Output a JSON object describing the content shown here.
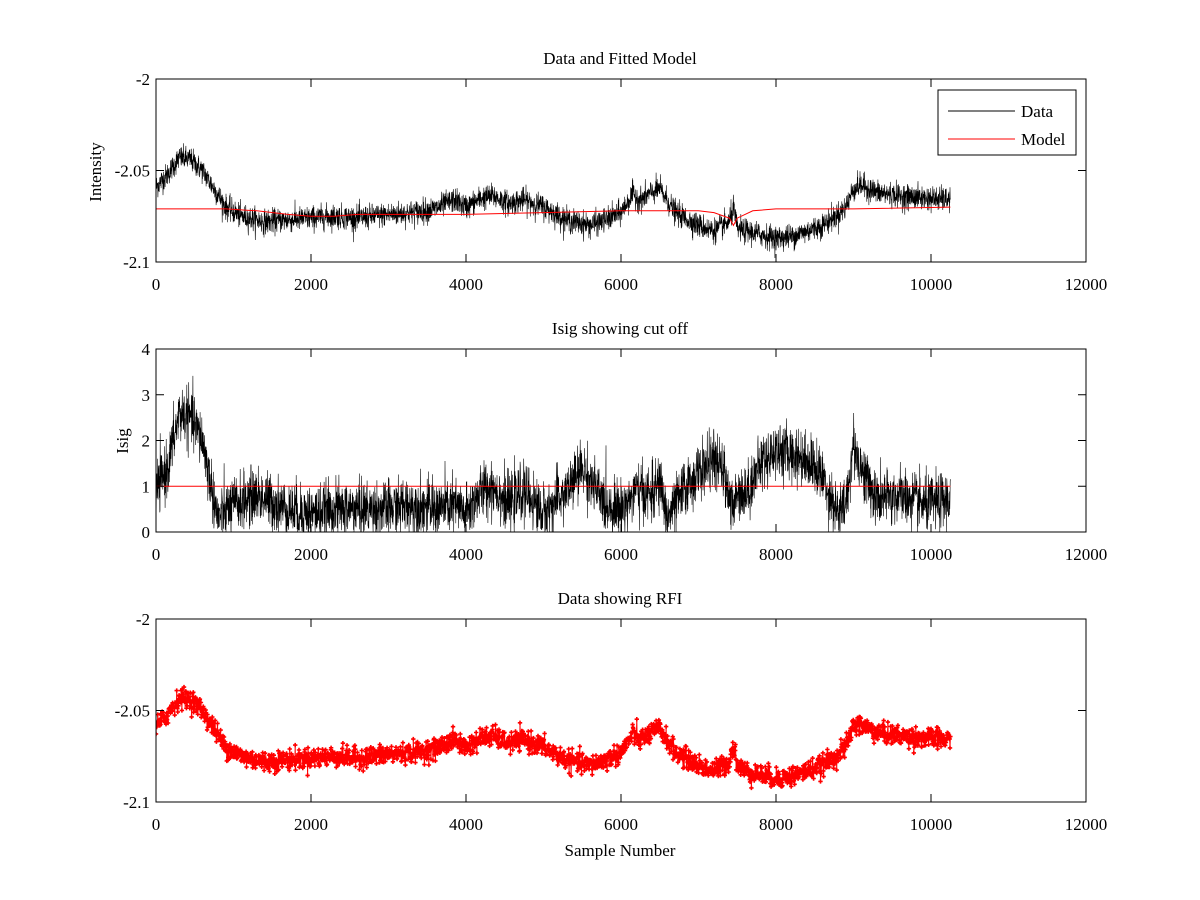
{
  "figure": {
    "background": "#ffffff",
    "axes_color": "#000000"
  },
  "chart_data": [
    {
      "type": "line",
      "title": "Data and Fitted Model",
      "xlabel": "",
      "ylabel": "Intensity",
      "xlim": [
        0,
        12000
      ],
      "ylim": [
        -2.1,
        -2.0
      ],
      "xticks": [
        0,
        2000,
        4000,
        6000,
        8000,
        10000,
        12000
      ],
      "yticks": [
        -2.1,
        -2.05,
        -2.0
      ],
      "xtick_labels": [
        "0",
        "2000",
        "4000",
        "6000",
        "8000",
        "10000",
        "12000"
      ],
      "ytick_labels": [
        "-2.1",
        "-2.05",
        "-2"
      ],
      "grid": false,
      "legend": {
        "placement": "top-right",
        "entries": [
          "Data",
          "Model"
        ]
      },
      "series": [
        {
          "name": "Data",
          "color": "#000000",
          "style": "line",
          "noise": 0.006,
          "x": [
            0,
            150,
            300,
            450,
            600,
            750,
            900,
            1100,
            1400,
            1700,
            2000,
            2300,
            2600,
            3000,
            3300,
            3600,
            3850,
            4000,
            4200,
            4350,
            4550,
            4750,
            5000,
            5300,
            5600,
            5800,
            6000,
            6150,
            6250,
            6400,
            6500,
            6700,
            7000,
            7200,
            7400,
            7450,
            7500,
            7600,
            7800,
            8000,
            8200,
            8400,
            8600,
            8800,
            8900,
            9000,
            9100,
            9300,
            9600,
            9900,
            10250
          ],
          "y": [
            -2.059,
            -2.052,
            -2.043,
            -2.044,
            -2.05,
            -2.06,
            -2.07,
            -2.075,
            -2.078,
            -2.077,
            -2.076,
            -2.075,
            -2.076,
            -2.074,
            -2.073,
            -2.071,
            -2.066,
            -2.07,
            -2.065,
            -2.064,
            -2.068,
            -2.066,
            -2.07,
            -2.077,
            -2.08,
            -2.077,
            -2.073,
            -2.063,
            -2.066,
            -2.062,
            -2.06,
            -2.073,
            -2.08,
            -2.083,
            -2.078,
            -2.07,
            -2.082,
            -2.083,
            -2.085,
            -2.087,
            -2.086,
            -2.083,
            -2.08,
            -2.074,
            -2.07,
            -2.06,
            -2.058,
            -2.062,
            -2.064,
            -2.065,
            -2.066
          ]
        },
        {
          "name": "Model",
          "color": "#ff0000",
          "style": "line",
          "noise": 0,
          "x": [
            0,
            900,
            1300,
            1700,
            2000,
            2300,
            2600,
            3000,
            4000,
            5000,
            6000,
            7000,
            7200,
            7400,
            7450,
            7500,
            7700,
            8000,
            9000,
            10250
          ],
          "y": [
            -2.071,
            -2.071,
            -2.072,
            -2.074,
            -2.075,
            -2.075,
            -2.074,
            -2.074,
            -2.074,
            -2.073,
            -2.072,
            -2.072,
            -2.073,
            -2.076,
            -2.08,
            -2.076,
            -2.072,
            -2.071,
            -2.071,
            -2.07
          ]
        }
      ]
    },
    {
      "type": "line",
      "title": "Isig showing cut off",
      "xlabel": "",
      "ylabel": "Isig",
      "xlim": [
        0,
        12000
      ],
      "ylim": [
        0,
        4
      ],
      "xticks": [
        0,
        2000,
        4000,
        6000,
        8000,
        10000,
        12000
      ],
      "yticks": [
        0,
        1,
        2,
        3,
        4
      ],
      "xtick_labels": [
        "0",
        "2000",
        "4000",
        "6000",
        "8000",
        "10000",
        "12000"
      ],
      "ytick_labels": [
        "0",
        "1",
        "2",
        "3",
        "4"
      ],
      "grid": false,
      "series": [
        {
          "color": "#000000",
          "style": "line",
          "noise": 0.55,
          "x": [
            0,
            150,
            300,
            450,
            600,
            700,
            800,
            1000,
            1300,
            1700,
            2000,
            2300,
            2600,
            3000,
            3300,
            3600,
            3850,
            4000,
            4200,
            4350,
            4550,
            4750,
            5000,
            5300,
            5500,
            5800,
            6000,
            6200,
            6400,
            6500,
            6600,
            6800,
            7000,
            7200,
            7350,
            7450,
            7500,
            7600,
            7800,
            8000,
            8200,
            8400,
            8600,
            8800,
            8900,
            9000,
            9100,
            9300,
            9600,
            9900,
            10250
          ],
          "y": [
            0.9,
            1.4,
            2.6,
            2.5,
            2.0,
            1.1,
            0.3,
            0.6,
            0.8,
            0.5,
            0.4,
            0.5,
            0.5,
            0.5,
            0.6,
            0.5,
            0.6,
            0.4,
            0.9,
            1.0,
            0.6,
            0.9,
            0.4,
            0.9,
            1.4,
            0.6,
            0.5,
            0.9,
            0.8,
            1.1,
            0.3,
            0.9,
            1.3,
            1.6,
            1.2,
            0.4,
            1.0,
            0.8,
            1.5,
            1.8,
            1.7,
            1.6,
            1.2,
            0.4,
            0.6,
            1.9,
            1.4,
            0.7,
            0.8,
            0.6,
            0.7
          ]
        },
        {
          "color": "#ff0000",
          "style": "line",
          "noise": 0,
          "x": [
            0,
            10250
          ],
          "y": [
            1,
            1
          ]
        }
      ]
    },
    {
      "type": "scatter",
      "title": "Data showing RFI",
      "xlabel": "Sample Number",
      "ylabel": "",
      "xlim": [
        0,
        12000
      ],
      "ylim": [
        -2.1,
        -2.0
      ],
      "xticks": [
        0,
        2000,
        4000,
        6000,
        8000,
        10000,
        12000
      ],
      "yticks": [
        -2.1,
        -2.05,
        -2.0
      ],
      "xtick_labels": [
        "0",
        "2000",
        "4000",
        "6000",
        "8000",
        "10000",
        "12000"
      ],
      "ytick_labels": [
        "-2.1",
        "-2.05",
        "-2"
      ],
      "grid": false,
      "series": [
        {
          "color": "#ff0000",
          "style": "markers",
          "noise": 0.005,
          "x": [
            0,
            150,
            300,
            450,
            600,
            750,
            900,
            1100,
            1400,
            1700,
            2000,
            2300,
            2600,
            3000,
            3300,
            3600,
            3850,
            4000,
            4200,
            4350,
            4550,
            4750,
            5000,
            5300,
            5600,
            5800,
            6000,
            6150,
            6250,
            6400,
            6500,
            6700,
            7000,
            7200,
            7400,
            7450,
            7500,
            7600,
            7800,
            8000,
            8200,
            8400,
            8600,
            8800,
            8900,
            9000,
            9100,
            9300,
            9600,
            9900,
            10250
          ],
          "y": [
            -2.059,
            -2.052,
            -2.043,
            -2.044,
            -2.05,
            -2.06,
            -2.07,
            -2.075,
            -2.078,
            -2.077,
            -2.076,
            -2.075,
            -2.076,
            -2.074,
            -2.073,
            -2.071,
            -2.066,
            -2.07,
            -2.065,
            -2.064,
            -2.068,
            -2.066,
            -2.07,
            -2.077,
            -2.08,
            -2.077,
            -2.073,
            -2.063,
            -2.066,
            -2.062,
            -2.06,
            -2.073,
            -2.08,
            -2.083,
            -2.078,
            -2.068,
            -2.08,
            -2.083,
            -2.085,
            -2.087,
            -2.086,
            -2.083,
            -2.08,
            -2.074,
            -2.07,
            -2.058,
            -2.058,
            -2.062,
            -2.064,
            -2.065,
            -2.066
          ]
        }
      ]
    }
  ]
}
